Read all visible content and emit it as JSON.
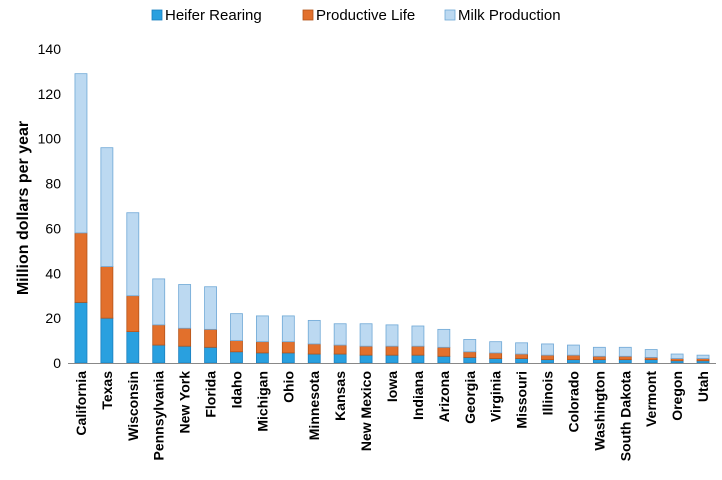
{
  "chart_data": {
    "type": "bar",
    "stacked": true,
    "ylabel": "Million dollars per year",
    "ylim": [
      0,
      140
    ],
    "yticks": [
      0,
      20,
      40,
      60,
      80,
      100,
      120,
      140
    ],
    "legend_position": "top",
    "categories": [
      "California",
      "Texas",
      "Wisconsin",
      "Pennsylvania",
      "New York",
      "Florida",
      "Idaho",
      "Michigan",
      "Ohio",
      "Minnesota",
      "Kansas",
      "New Mexico",
      "Iowa",
      "Indiana",
      "Arizona",
      "Georgia",
      "Virginia",
      "Missouri",
      "Illinois",
      "Colorado",
      "Washington",
      "South Dakota",
      "Vermont",
      "Oregon",
      "Utah"
    ],
    "series": [
      {
        "name": "Heifer Rearing",
        "color": "#29a0df",
        "edge": "#1a7fbf",
        "values": [
          27,
          20,
          14,
          8,
          7.5,
          7,
          5,
          4.5,
          4.5,
          4,
          4,
          3.5,
          3.5,
          3.5,
          3,
          2.5,
          2,
          2,
          1.5,
          1.5,
          1.5,
          1.5,
          1.5,
          1,
          1
        ]
      },
      {
        "name": "Productive Life",
        "color": "#e2702c",
        "edge": "#b3541a",
        "values": [
          31,
          23,
          16,
          9,
          8,
          8,
          5,
          5,
          5,
          4.5,
          4,
          4,
          4,
          4,
          4,
          2.5,
          2.5,
          2,
          2,
          2,
          1.5,
          1.5,
          1,
          1,
          1
        ]
      },
      {
        "name": "Milk Production",
        "color": "#bcd9f1",
        "edge": "#6fa8d6",
        "values": [
          71,
          53,
          37,
          20.5,
          19.5,
          19,
          12,
          11.5,
          11.5,
          10.5,
          9.5,
          10,
          9.5,
          9,
          8,
          5.5,
          5,
          5,
          5,
          4.5,
          4,
          4,
          3.5,
          2,
          1.5
        ]
      }
    ]
  }
}
